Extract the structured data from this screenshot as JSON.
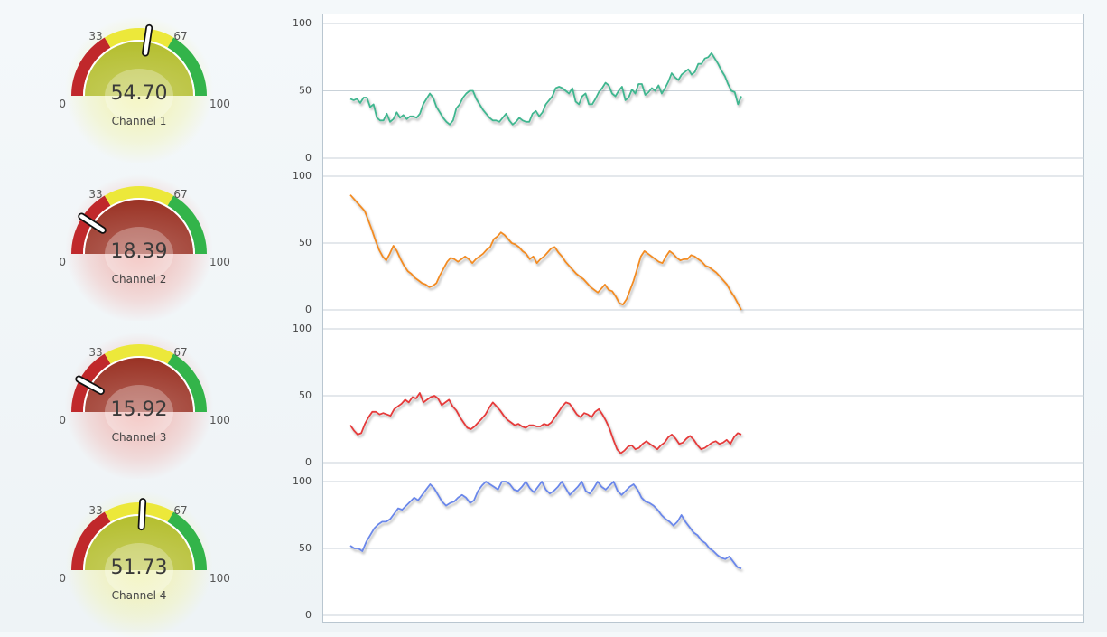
{
  "colors": {
    "red": "#c0282b",
    "yellow": "#ece83a",
    "green": "#33b44a",
    "series": [
      "#3fb68f",
      "#f28b23",
      "#e53a3a",
      "#6a87ea"
    ]
  },
  "gauges": [
    {
      "label": "Channel 1",
      "value": 54.7,
      "display": "54.70",
      "min_label": "0",
      "low_label": "33",
      "high_label": "67",
      "max_label": "100"
    },
    {
      "label": "Channel 2",
      "value": 18.39,
      "display": "18.39",
      "min_label": "0",
      "low_label": "33",
      "high_label": "67",
      "max_label": "100"
    },
    {
      "label": "Channel 3",
      "value": 15.92,
      "display": "15.92",
      "min_label": "0",
      "low_label": "33",
      "high_label": "67",
      "max_label": "100"
    },
    {
      "label": "Channel 4",
      "value": 51.73,
      "display": "51.73",
      "min_label": "0",
      "low_label": "33",
      "high_label": "67",
      "max_label": "100"
    }
  ],
  "chart_data": [
    {
      "type": "line",
      "ylim": [
        0,
        100
      ],
      "yticks": [
        "0",
        "50",
        "100"
      ],
      "grid": true,
      "series": [
        {
          "values": [
            44,
            43,
            44,
            41,
            45,
            45,
            38,
            40,
            30,
            28,
            28,
            33,
            27,
            29,
            34,
            30,
            32,
            29,
            31,
            31,
            30,
            33,
            40,
            44,
            48,
            45,
            38,
            34,
            30,
            27,
            25,
            28,
            37,
            40,
            45,
            48,
            50,
            50,
            44,
            40,
            36,
            33,
            30,
            28,
            28,
            27,
            30,
            33,
            28,
            25,
            27,
            30,
            28,
            27,
            27,
            33,
            35,
            31,
            34,
            40,
            43,
            46,
            52,
            53,
            52,
            50,
            48,
            52,
            42,
            40,
            46,
            48,
            40,
            40,
            44,
            49,
            52,
            56,
            54,
            48,
            46,
            50,
            53,
            43,
            45,
            51,
            48,
            55,
            55,
            47,
            49,
            52,
            50,
            54,
            48,
            52,
            57,
            63,
            60,
            58,
            62,
            64,
            66,
            62,
            64,
            70,
            70,
            74,
            75,
            78,
            74,
            70,
            65,
            61,
            55,
            50,
            49,
            40,
            46
          ]
        }
      ]
    },
    {
      "type": "line",
      "ylim": [
        0,
        100
      ],
      "yticks": [
        "0",
        "50",
        "100"
      ],
      "grid": true,
      "series": [
        {
          "values": [
            86,
            83,
            80,
            77,
            74,
            67,
            60,
            52,
            45,
            40,
            37,
            42,
            48,
            44,
            38,
            33,
            29,
            27,
            24,
            22,
            20,
            19,
            17,
            18,
            20,
            26,
            31,
            36,
            39,
            38,
            36,
            38,
            40,
            38,
            35,
            38,
            40,
            42,
            45,
            47,
            53,
            55,
            58,
            56,
            53,
            50,
            49,
            47,
            44,
            42,
            38,
            40,
            35,
            38,
            40,
            43,
            46,
            47,
            43,
            40,
            36,
            33,
            30,
            27,
            25,
            23,
            20,
            17,
            15,
            13,
            16,
            19,
            15,
            14,
            10,
            5,
            4,
            8,
            15,
            22,
            31,
            40,
            44,
            42,
            40,
            38,
            36,
            35,
            40,
            44,
            42,
            39,
            37,
            38,
            38,
            41,
            40,
            38,
            36,
            33,
            32,
            30,
            28,
            25,
            22,
            19,
            14,
            10,
            5,
            0
          ]
        }
      ]
    },
    {
      "type": "line",
      "ylim": [
        0,
        100
      ],
      "yticks": [
        "0",
        "50",
        "100"
      ],
      "grid": true,
      "series": [
        {
          "values": [
            28,
            24,
            21,
            22,
            29,
            34,
            38,
            38,
            36,
            37,
            36,
            35,
            40,
            42,
            44,
            47,
            45,
            49,
            48,
            52,
            45,
            47,
            49,
            50,
            48,
            43,
            45,
            47,
            42,
            39,
            34,
            30,
            26,
            25,
            27,
            30,
            33,
            36,
            41,
            45,
            42,
            39,
            35,
            32,
            30,
            28,
            29,
            27,
            26,
            28,
            28,
            27,
            27,
            29,
            28,
            30,
            34,
            38,
            42,
            45,
            44,
            40,
            36,
            34,
            37,
            36,
            34,
            38,
            40,
            36,
            31,
            25,
            17,
            10,
            7,
            9,
            12,
            13,
            10,
            11,
            14,
            16,
            14,
            12,
            10,
            13,
            15,
            19,
            21,
            18,
            14,
            15,
            18,
            20,
            17,
            13,
            10,
            11,
            13,
            15,
            16,
            14,
            15,
            17,
            14,
            19,
            22,
            21
          ]
        }
      ]
    },
    {
      "type": "line",
      "ylim": [
        0,
        100
      ],
      "yticks": [
        "0",
        "50",
        "100"
      ],
      "grid": true,
      "series": [
        {
          "values": [
            52,
            50,
            50,
            48,
            55,
            60,
            65,
            68,
            70,
            70,
            72,
            76,
            80,
            79,
            82,
            85,
            88,
            86,
            90,
            94,
            98,
            95,
            90,
            85,
            82,
            84,
            85,
            88,
            90,
            88,
            84,
            86,
            93,
            97,
            100,
            98,
            96,
            94,
            100,
            100,
            98,
            94,
            93,
            96,
            100,
            95,
            92,
            96,
            100,
            94,
            91,
            93,
            96,
            100,
            95,
            90,
            93,
            96,
            100,
            93,
            91,
            95,
            100,
            96,
            94,
            97,
            100,
            93,
            90,
            93,
            96,
            98,
            94,
            88,
            85,
            84,
            82,
            79,
            75,
            72,
            70,
            67,
            70,
            75,
            70,
            66,
            62,
            60,
            56,
            54,
            50,
            48,
            45,
            43,
            42,
            44,
            40,
            36,
            35
          ]
        }
      ]
    }
  ]
}
